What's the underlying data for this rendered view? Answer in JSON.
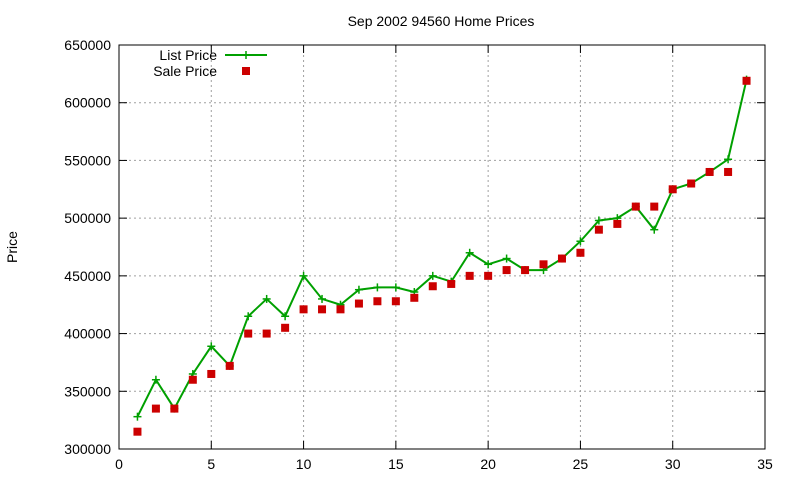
{
  "chart_data": {
    "type": "line",
    "title": "Sep 2002 94560 Home Prices",
    "xlabel": "",
    "ylabel": "Price",
    "xlim": [
      0,
      35
    ],
    "ylim": [
      300000,
      650000
    ],
    "xticks": [
      0,
      5,
      10,
      15,
      20,
      25,
      30,
      35
    ],
    "yticks": [
      300000,
      350000,
      400000,
      450000,
      500000,
      550000,
      600000,
      650000
    ],
    "grid": true,
    "legend_position": "top-left",
    "series": [
      {
        "name": "List Price",
        "style": "line+cross",
        "color": "#00a000",
        "x": [
          1,
          2,
          3,
          4,
          5,
          6,
          7,
          8,
          9,
          10,
          11,
          12,
          13,
          14,
          15,
          16,
          17,
          18,
          19,
          20,
          21,
          22,
          23,
          24,
          25,
          26,
          27,
          28,
          29,
          30,
          31,
          32,
          33,
          34
        ],
        "y": [
          328000,
          360000,
          335000,
          365000,
          389000,
          372000,
          415000,
          430000,
          415000,
          450000,
          430000,
          425000,
          438000,
          440000,
          440000,
          436000,
          450000,
          445000,
          470000,
          460000,
          465000,
          455000,
          455000,
          465000,
          480000,
          498000,
          500000,
          510000,
          490000,
          525000,
          530000,
          540000,
          551000,
          620000
        ]
      },
      {
        "name": "Sale Price",
        "style": "square",
        "color": "#cc0000",
        "x": [
          1,
          2,
          3,
          4,
          5,
          6,
          7,
          8,
          9,
          10,
          11,
          12,
          13,
          14,
          15,
          16,
          17,
          18,
          19,
          20,
          21,
          22,
          23,
          24,
          25,
          26,
          27,
          28,
          29,
          30,
          31,
          32,
          33,
          34
        ],
        "y": [
          315000,
          335000,
          335000,
          360000,
          365000,
          372000,
          400000,
          400000,
          405000,
          421000,
          421000,
          421000,
          426000,
          428000,
          428000,
          431000,
          441000,
          443000,
          450000,
          450000,
          455000,
          455000,
          460000,
          465000,
          470000,
          490000,
          495000,
          510000,
          510000,
          525000,
          530000,
          540000,
          540000,
          619000
        ]
      }
    ]
  }
}
